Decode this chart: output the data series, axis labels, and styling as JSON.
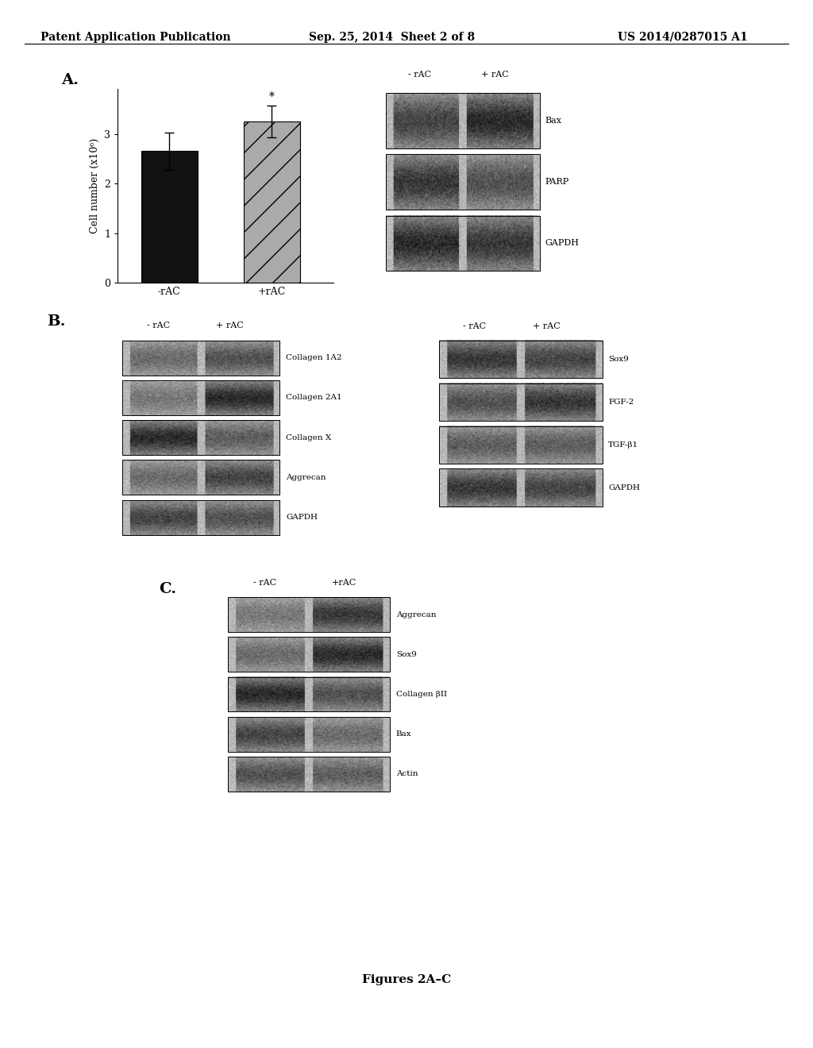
{
  "header_left": "Patent Application Publication",
  "header_mid": "Sep. 25, 2014  Sheet 2 of 8",
  "header_right": "US 2014/0287015 A1",
  "footer": "Figures 2A–C",
  "panel_A": {
    "label": "A.",
    "bar_labels": [
      "-rAC",
      "+rAC"
    ],
    "bar_values": [
      2.65,
      3.25
    ],
    "bar_errors": [
      0.38,
      0.32
    ],
    "bar_colors": [
      "#111111",
      "#aaaaaa"
    ],
    "bar_hatches": [
      "",
      "/"
    ],
    "ylabel": "Cell number (x10⁶)",
    "yticks": [
      0,
      1,
      2,
      3
    ],
    "ylim": [
      0,
      3.9
    ],
    "western_bands": [
      "Bax",
      "PARP",
      "GAPDH"
    ]
  },
  "panel_B": {
    "label": "B.",
    "left_labels": [
      "-rAC",
      "+rAC"
    ],
    "left_bands": [
      "Collagen 1A2",
      "Collagen 2A1",
      "Collagen X",
      "Aggrecan",
      "GAPDH"
    ],
    "right_labels": [
      "-rAC",
      "+rAC"
    ],
    "right_bands": [
      "Sox9",
      "FGF-2",
      "TGF-β1",
      "GAPDH"
    ]
  },
  "panel_C": {
    "label": "C.",
    "col_labels": [
      "-rAC",
      "+rAC"
    ],
    "bands": [
      "Aggrecan",
      "Sox9",
      "Collagen βII",
      "Bax",
      "Actin"
    ]
  },
  "bg_color": "#ffffff",
  "text_color": "#000000"
}
